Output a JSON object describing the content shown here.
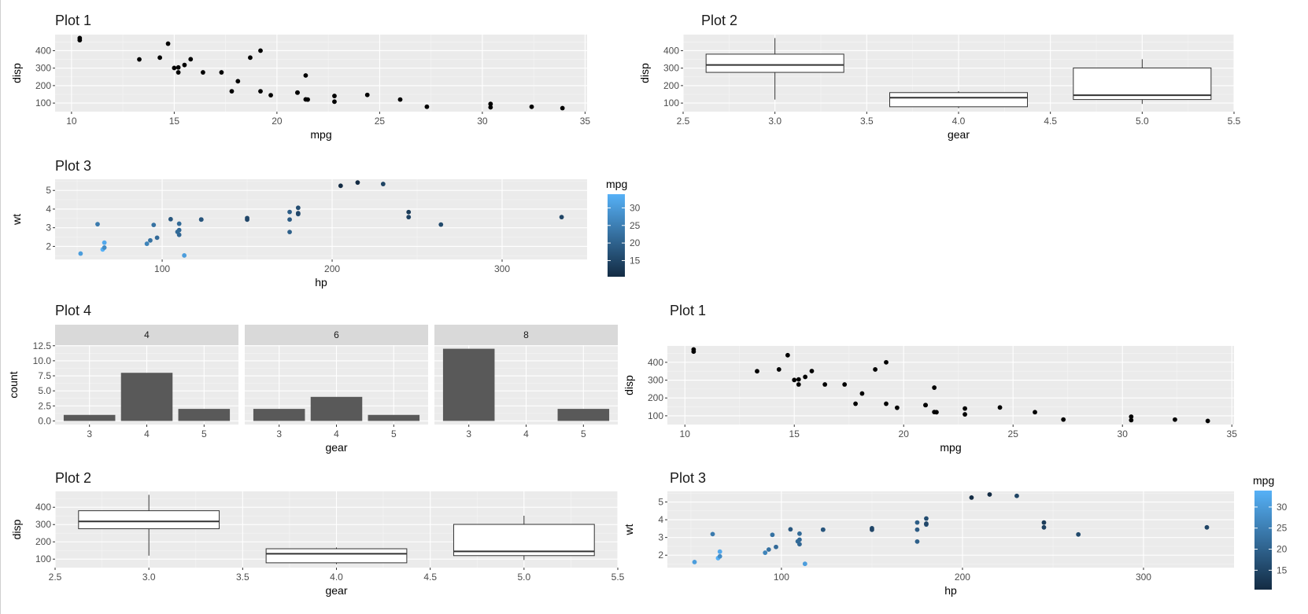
{
  "colors": {
    "panel_bg": "#ebebeb",
    "grid_major": "#ffffff",
    "grid_minor": "#f5f5f5",
    "strip_bg": "#d9d9d9",
    "bar_fill": "#595959",
    "point": "#000000",
    "axis_text": "#4d4d4d",
    "title_text": "#1a1a1a",
    "gradient_low": "#132b43",
    "gradient_high": "#56b1f7"
  },
  "datasets": {
    "mtcars_mpg_disp": {
      "mpg": [
        21.0,
        21.0,
        22.8,
        21.4,
        18.7,
        18.1,
        14.3,
        24.4,
        22.8,
        19.2,
        17.8,
        16.4,
        17.3,
        15.2,
        10.4,
        10.4,
        14.7,
        32.4,
        30.4,
        33.9,
        21.5,
        15.5,
        15.2,
        13.3,
        19.2,
        27.3,
        26.0,
        30.4,
        15.8,
        19.7,
        15.0,
        21.4
      ],
      "disp": [
        160,
        160,
        108,
        258,
        360,
        225,
        360,
        146.7,
        140.8,
        167.6,
        167.6,
        275.8,
        275.8,
        275.8,
        472,
        460,
        440,
        78.7,
        75.7,
        71.1,
        120.1,
        318,
        304,
        350,
        400,
        79,
        120.3,
        95.1,
        351,
        145,
        301,
        121
      ]
    },
    "mtcars_hp_wt": {
      "hp": [
        110,
        110,
        93,
        110,
        175,
        105,
        245,
        62,
        95,
        123,
        123,
        180,
        180,
        180,
        205,
        215,
        230,
        66,
        52,
        65,
        97,
        150,
        150,
        245,
        175,
        66,
        91,
        113,
        264,
        175,
        335,
        109
      ],
      "wt": [
        2.62,
        2.875,
        2.32,
        3.215,
        3.44,
        3.46,
        3.57,
        3.19,
        3.15,
        3.44,
        3.44,
        4.07,
        3.73,
        3.78,
        5.25,
        5.424,
        5.345,
        2.2,
        1.615,
        1.835,
        2.465,
        3.52,
        3.435,
        3.84,
        3.845,
        1.935,
        2.14,
        1.513,
        3.17,
        2.77,
        3.57,
        2.78
      ],
      "mpg": [
        21.0,
        21.0,
        22.8,
        21.4,
        18.7,
        18.1,
        14.3,
        24.4,
        22.8,
        19.2,
        17.8,
        16.4,
        17.3,
        15.2,
        10.4,
        10.4,
        14.7,
        32.4,
        30.4,
        33.9,
        21.5,
        15.5,
        15.2,
        13.3,
        19.2,
        27.3,
        26.0,
        30.4,
        15.8,
        19.7,
        15.0,
        21.4
      ]
    },
    "mtcars_gear_disp_box": [
      {
        "gear": 3,
        "lower": 120.1,
        "q1": 275.8,
        "median": 318,
        "q3": 380,
        "upper": 472
      },
      {
        "gear": 4,
        "lower": 71.1,
        "q1": 78.85,
        "median": 130.9,
        "q3": 160,
        "upper": 167.6
      },
      {
        "gear": 5,
        "lower": 95.1,
        "q1": 120.3,
        "median": 145,
        "q3": 301,
        "upper": 351
      }
    ]
  },
  "chart_data": [
    {
      "id": "top_plot1",
      "type": "scatter",
      "title": "Plot 1",
      "xlabel": "mpg",
      "ylabel": "disp",
      "xlim": [
        9.2,
        35.1
      ],
      "ylim": [
        51,
        492
      ],
      "x_ticks": [
        10,
        15,
        20,
        25,
        30,
        35
      ],
      "y_ticks": [
        100,
        200,
        300,
        400
      ],
      "source": "mtcars_mpg_disp",
      "x_field": "mpg",
      "y_field": "disp",
      "grid": true
    },
    {
      "id": "top_plot2",
      "type": "boxplot",
      "title": "Plot 2",
      "xlabel": "gear",
      "ylabel": "disp",
      "xlim": [
        2.5,
        5.5
      ],
      "ylim": [
        51,
        492
      ],
      "x_ticks": [
        2.5,
        3.0,
        3.5,
        4.0,
        4.5,
        5.0,
        5.5
      ],
      "x_tick_labels": [
        "2.5",
        "3.0",
        "3.5",
        "4.0",
        "4.5",
        "5.0",
        "5.5"
      ],
      "y_ticks": [
        100,
        200,
        300,
        400
      ],
      "source": "mtcars_gear_disp_box",
      "grid": true
    },
    {
      "id": "top_plot3",
      "type": "scatter",
      "title": "Plot 3",
      "xlabel": "hp",
      "ylabel": "wt",
      "xlim": [
        37,
        350
      ],
      "ylim": [
        1.3,
        5.6
      ],
      "x_ticks": [
        100,
        200,
        300
      ],
      "y_ticks": [
        2,
        3,
        4,
        5
      ],
      "source": "mtcars_hp_wt",
      "x_field": "hp",
      "y_field": "wt",
      "color_field": "mpg",
      "legend": {
        "title": "mpg",
        "placement": "right",
        "range": [
          10.4,
          33.9
        ],
        "ticks": [
          15,
          20,
          25,
          30
        ]
      },
      "grid": true
    },
    {
      "id": "plot4",
      "type": "bar",
      "title": "Plot 4",
      "xlabel": "gear",
      "ylabel": "count",
      "facets": [
        {
          "label": "4",
          "categories": [
            "3",
            "4",
            "5"
          ],
          "values": [
            1,
            8,
            2
          ]
        },
        {
          "label": "6",
          "categories": [
            "3",
            "4",
            "5"
          ],
          "values": [
            2,
            4,
            1
          ]
        },
        {
          "label": "8",
          "categories": [
            "3",
            "4",
            "5"
          ],
          "values": [
            12,
            0,
            2
          ]
        }
      ],
      "ylim": [
        -0.6,
        12.6
      ],
      "y_ticks": [
        0,
        2.5,
        5,
        7.5,
        10,
        12.5
      ],
      "y_tick_labels": [
        "0.0",
        "2.5",
        "5.0",
        "7.5",
        "10.0",
        "12.5"
      ],
      "grid": true
    },
    {
      "id": "mid_plot1",
      "type": "scatter",
      "title": "Plot 1",
      "xlabel": "mpg",
      "ylabel": "disp",
      "xlim": [
        9.2,
        35.1
      ],
      "ylim": [
        51,
        492
      ],
      "x_ticks": [
        10,
        15,
        20,
        25,
        30,
        35
      ],
      "y_ticks": [
        100,
        200,
        300,
        400
      ],
      "source": "mtcars_mpg_disp",
      "x_field": "mpg",
      "y_field": "disp",
      "grid": true
    },
    {
      "id": "bottom_plot2",
      "type": "boxplot",
      "title": "Plot 2",
      "xlabel": "gear",
      "ylabel": "disp",
      "xlim": [
        2.5,
        5.5
      ],
      "ylim": [
        51,
        492
      ],
      "x_ticks": [
        2.5,
        3.0,
        3.5,
        4.0,
        4.5,
        5.0,
        5.5
      ],
      "x_tick_labels": [
        "2.5",
        "3.0",
        "3.5",
        "4.0",
        "4.5",
        "5.0",
        "5.5"
      ],
      "y_ticks": [
        100,
        200,
        300,
        400
      ],
      "source": "mtcars_gear_disp_box",
      "grid": true
    },
    {
      "id": "bottom_plot3",
      "type": "scatter",
      "title": "Plot 3",
      "xlabel": "hp",
      "ylabel": "wt",
      "xlim": [
        37,
        350
      ],
      "ylim": [
        1.3,
        5.6
      ],
      "x_ticks": [
        100,
        200,
        300
      ],
      "y_ticks": [
        2,
        3,
        4,
        5
      ],
      "source": "mtcars_hp_wt",
      "x_field": "hp",
      "y_field": "wt",
      "color_field": "mpg",
      "legend": {
        "title": "mpg",
        "placement": "right",
        "range": [
          10.4,
          33.9
        ],
        "ticks": [
          15,
          20,
          25,
          30
        ]
      },
      "grid": true
    }
  ]
}
